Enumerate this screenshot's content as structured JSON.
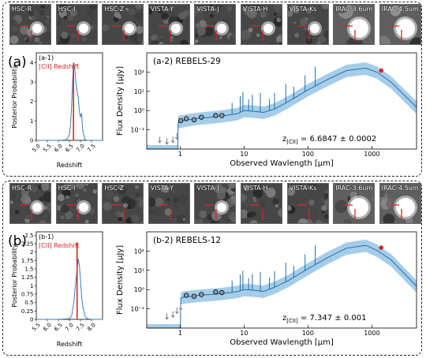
{
  "panel_a": {
    "tag": "(a)",
    "cutout_labels": [
      "HSC-R",
      "HSC-I",
      "HSC-Z",
      "VISTA-Y",
      "VISTA-J",
      "VISTA-H",
      "VISTA-Ks",
      "IRAC-3.6um",
      "IRAC-4.5um"
    ],
    "cutout_has_source": [
      true,
      true,
      true,
      true,
      true,
      true,
      true,
      true,
      true
    ]
  },
  "panel_b": {
    "tag": "(b)",
    "cutout_labels": [
      "HSC-R",
      "HSC-I",
      "HSC-Z",
      "VISTA-Y",
      "VISTA-J",
      "VISTA-H",
      "VISTA-Ks",
      "IRAC-3.6um",
      "IRAC-4.5um"
    ],
    "cutout_has_source": [
      true,
      true,
      false,
      false,
      true,
      false,
      false,
      true,
      true
    ]
  },
  "colors": {
    "sed_line": "#1f6fad",
    "sed_band": "#a6cde8",
    "pdf_line": "#3a7ec4",
    "redshift_marker": "#d62728",
    "photometry": "#7f9fb3",
    "upper_limit": "#7f7f7f"
  },
  "chart_data": [
    {
      "id": "a-1",
      "type": "line",
      "panel_label": "(a-1)",
      "legend": "[CII] Redshift",
      "xlabel": "Redshift",
      "ylabel": "Posterior Probability",
      "xlim": [
        5.0,
        8.0
      ],
      "ylim": [
        0,
        4.5
      ],
      "xticks": [
        5.0,
        5.5,
        6.0,
        6.5,
        7.0,
        7.5
      ],
      "yticks": [
        0,
        1,
        2,
        3,
        4
      ],
      "redshift_line": 6.6847,
      "x": [
        5.0,
        6.0,
        6.3,
        6.4,
        6.5,
        6.55,
        6.6,
        6.65,
        6.7,
        6.75,
        6.8,
        6.85,
        6.9,
        6.95,
        7.0,
        7.05,
        7.1,
        7.2,
        7.3,
        8.0
      ],
      "y": [
        0,
        0,
        0.02,
        0.08,
        0.3,
        0.8,
        1.8,
        3.2,
        4.0,
        3.6,
        2.9,
        2.5,
        2.2,
        1.5,
        1.2,
        1.4,
        0.5,
        0.05,
        0,
        0
      ]
    },
    {
      "id": "a-2",
      "type": "line",
      "panel_label": "(a-2) REBELS-29",
      "xlabel": "Observed Wavlength [μm]",
      "ylabel": "Flux Density [μJy]",
      "xscale": "log",
      "yscale": "log",
      "xlim": [
        0.3,
        5000
      ],
      "ylim": [
        0.01,
        1000
      ],
      "xtick_labels": [
        "1",
        "10",
        "100",
        "1000"
      ],
      "ytick_labels": [
        "10⁻¹",
        "10⁰",
        "10¹",
        "10²"
      ],
      "redshift_text": "z[CII] = 6.6847 ± 0.0002",
      "redshift_prefix": "z",
      "redshift_sub": "[CII]",
      "redshift_value": " = 6.6847 ± 0.0002",
      "model_x": [
        0.3,
        0.92,
        0.93,
        1.0,
        1.5,
        2.0,
        3.0,
        4.0,
        5.0,
        6.0,
        8.0,
        10,
        15,
        20,
        30,
        50,
        100,
        200,
        400,
        800,
        1200,
        2000,
        5000
      ],
      "model_y": [
        0.008,
        0.008,
        0.25,
        0.28,
        0.35,
        0.4,
        0.45,
        0.5,
        0.55,
        0.6,
        0.7,
        1.0,
        0.9,
        0.8,
        1.2,
        3.0,
        12,
        40,
        120,
        160,
        100,
        30,
        1.5
      ],
      "photometry": [
        {
          "x": 1.02,
          "y": 0.3
        },
        {
          "x": 1.25,
          "y": 0.38
        },
        {
          "x": 1.65,
          "y": 0.33
        },
        {
          "x": 2.15,
          "y": 0.45
        },
        {
          "x": 3.6,
          "y": 0.55
        },
        {
          "x": 4.5,
          "y": 0.55
        }
      ],
      "upper_limits": [
        {
          "x": 0.48,
          "y": 0.03
        },
        {
          "x": 0.62,
          "y": 0.025
        },
        {
          "x": 0.77,
          "y": 0.03
        },
        {
          "x": 0.89,
          "y": 0.045
        }
      ],
      "alma_point": {
        "x": 1400,
        "y": 120
      }
    },
    {
      "id": "b-1",
      "type": "line",
      "panel_label": "(b-1)",
      "legend": "[CII] Redshift",
      "xlabel": "Redshift",
      "ylabel": "Posterior Probability",
      "xlim": [
        5.5,
        8.5
      ],
      "ylim": [
        0,
        2.6
      ],
      "xticks": [
        5.5,
        6.0,
        6.5,
        7.0,
        7.5,
        8.0
      ],
      "yticks": [
        0.0,
        0.25,
        0.5,
        0.75,
        1.0,
        1.25,
        1.5,
        1.75,
        2.0,
        2.25,
        2.5
      ],
      "redshift_line": 7.347,
      "x": [
        5.5,
        6.5,
        7.0,
        7.1,
        7.2,
        7.3,
        7.35,
        7.4,
        7.45,
        7.5,
        7.55,
        7.6,
        7.7,
        7.8,
        8.0,
        8.5
      ],
      "y": [
        0,
        0,
        0.02,
        0.1,
        0.5,
        1.2,
        1.5,
        1.8,
        1.6,
        1.2,
        0.7,
        0.4,
        0.1,
        0.02,
        0,
        0
      ]
    },
    {
      "id": "b-2",
      "type": "line",
      "panel_label": "(b-2) REBELS-12",
      "xlabel": "Observed Wavlength [μm]",
      "ylabel": "Flux Density [μJy]",
      "xscale": "log",
      "yscale": "log",
      "xlim": [
        0.3,
        5000
      ],
      "ylim": [
        0.01,
        1000
      ],
      "xtick_labels": [
        "1",
        "10",
        "100",
        "1000"
      ],
      "ytick_labels": [
        "10⁻¹",
        "10⁰",
        "10¹",
        "10²"
      ],
      "redshift_text": "z[CII] = 7.347 ± 0.001",
      "redshift_prefix": "z",
      "redshift_sub": "[CII]",
      "redshift_value": " = 7.347 ± 0.001",
      "model_x": [
        0.3,
        1.01,
        1.02,
        1.1,
        1.5,
        2.0,
        3.0,
        4.0,
        5.0,
        6.0,
        8.0,
        10,
        15,
        20,
        30,
        50,
        100,
        200,
        400,
        800,
        1200,
        2000,
        5000
      ],
      "model_y": [
        0.008,
        0.008,
        0.35,
        0.4,
        0.45,
        0.5,
        0.55,
        0.6,
        0.65,
        0.7,
        0.8,
        1.0,
        0.9,
        0.8,
        1.3,
        3.0,
        12,
        45,
        140,
        200,
        110,
        35,
        1.5
      ],
      "photometry": [
        {
          "x": 1.25,
          "y": 0.5
        },
        {
          "x": 1.65,
          "y": 0.45
        },
        {
          "x": 2.15,
          "y": 0.55
        },
        {
          "x": 3.6,
          "y": 0.75
        },
        {
          "x": 4.5,
          "y": 0.7
        }
      ],
      "upper_limits": [
        {
          "x": 0.62,
          "y": 0.04
        },
        {
          "x": 0.77,
          "y": 0.05
        },
        {
          "x": 0.89,
          "y": 0.08
        },
        {
          "x": 1.02,
          "y": 0.12
        }
      ],
      "alma_point": {
        "x": 1400,
        "y": 150
      }
    }
  ]
}
